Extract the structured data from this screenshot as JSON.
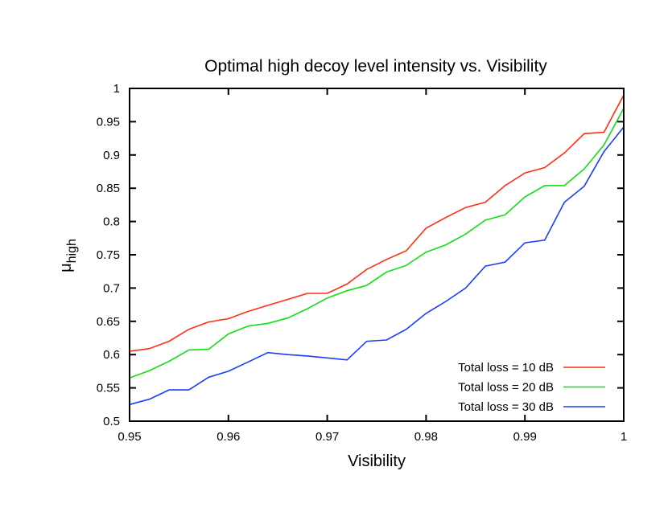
{
  "chart_data": {
    "type": "line",
    "title": "Optimal high decoy level intensity vs. Visibility",
    "xlabel": "Visibility",
    "ylabel": "μ",
    "ylabel_subscript": "high",
    "xlim": [
      0.95,
      1
    ],
    "ylim": [
      0.5,
      1
    ],
    "xticks": [
      "0.95",
      "0.96",
      "0.97",
      "0.98",
      "0.99",
      "1"
    ],
    "yticks": [
      "0.5",
      "0.55",
      "0.6",
      "0.65",
      "0.7",
      "0.75",
      "0.8",
      "0.85",
      "0.9",
      "0.95",
      "1"
    ],
    "grid": false,
    "legend_position": "bottom-right",
    "x": [
      0.95,
      0.952,
      0.954,
      0.956,
      0.958,
      0.96,
      0.962,
      0.964,
      0.966,
      0.968,
      0.97,
      0.972,
      0.974,
      0.976,
      0.978,
      0.98,
      0.982,
      0.984,
      0.986,
      0.988,
      0.99,
      0.992,
      0.994,
      0.996,
      0.998,
      1.0
    ],
    "series": [
      {
        "name": "Total loss = 10 dB",
        "color": "#ff3010",
        "values": [
          0.605,
          0.609,
          0.62,
          0.638,
          0.649,
          0.654,
          0.665,
          0.674,
          0.683,
          0.692,
          0.692,
          0.706,
          0.728,
          0.743,
          0.756,
          0.79,
          0.806,
          0.821,
          0.829,
          0.854,
          0.873,
          0.881,
          0.903,
          0.932,
          0.934,
          0.99
        ]
      },
      {
        "name": "Total loss = 20 dB",
        "color": "#10e010",
        "values": [
          0.565,
          0.576,
          0.59,
          0.607,
          0.608,
          0.631,
          0.643,
          0.647,
          0.655,
          0.669,
          0.685,
          0.696,
          0.704,
          0.724,
          0.734,
          0.754,
          0.765,
          0.781,
          0.802,
          0.81,
          0.837,
          0.854,
          0.854,
          0.879,
          0.915,
          0.97
        ]
      },
      {
        "name": "Total loss = 30 dB",
        "color": "#1a3cff",
        "values": [
          0.525,
          0.533,
          0.547,
          0.547,
          0.566,
          0.575,
          0.589,
          0.603,
          0.6,
          0.598,
          0.595,
          0.592,
          0.62,
          0.622,
          0.638,
          0.662,
          0.68,
          0.7,
          0.733,
          0.739,
          0.768,
          0.772,
          0.829,
          0.853,
          0.905,
          0.942
        ]
      }
    ]
  }
}
